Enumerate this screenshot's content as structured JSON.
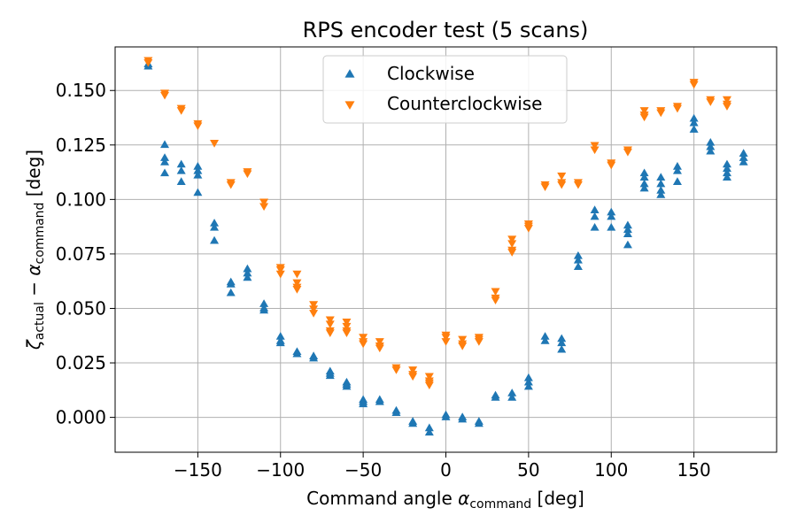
{
  "chart_data": {
    "type": "scatter",
    "title": "RPS encoder test (5 scans)",
    "xlabel": {
      "main": "Command angle ",
      "symbol": "α",
      "sub": "command",
      "unit": " [deg]"
    },
    "ylabel": {
      "sym1": "ζ",
      "sub1": "actual",
      "mid": " − ",
      "sym2": "α",
      "sub2": "command",
      "unit": " [deg]"
    },
    "xlim": [
      -200,
      200
    ],
    "ylim": [
      -0.016,
      0.17
    ],
    "xticks": [
      -150,
      -100,
      -50,
      0,
      50,
      100,
      150
    ],
    "xtick_labels": [
      "−150",
      "−100",
      "−50",
      "0",
      "50",
      "100",
      "150"
    ],
    "yticks": [
      0.0,
      0.025,
      0.05,
      0.075,
      0.1,
      0.125,
      0.15
    ],
    "ytick_labels": [
      "0.000",
      "0.025",
      "0.050",
      "0.075",
      "0.100",
      "0.125",
      "0.150"
    ],
    "grid": true,
    "legend_position": "top-center",
    "series": [
      {
        "name": "Clockwise",
        "color": "#1f77b4",
        "marker": "triangle-up",
        "points": [
          [
            -180,
            0.161
          ],
          [
            -180,
            0.162
          ],
          [
            -170,
            0.125
          ],
          [
            -170,
            0.119
          ],
          [
            -170,
            0.117
          ],
          [
            -170,
            0.112
          ],
          [
            -160,
            0.116
          ],
          [
            -160,
            0.113
          ],
          [
            -160,
            0.108
          ],
          [
            -150,
            0.115
          ],
          [
            -150,
            0.113
          ],
          [
            -150,
            0.111
          ],
          [
            -150,
            0.103
          ],
          [
            -140,
            0.089
          ],
          [
            -140,
            0.087
          ],
          [
            -140,
            0.081
          ],
          [
            -130,
            0.062
          ],
          [
            -130,
            0.061
          ],
          [
            -130,
            0.057
          ],
          [
            -120,
            0.068
          ],
          [
            -120,
            0.066
          ],
          [
            -120,
            0.064
          ],
          [
            -110,
            0.052
          ],
          [
            -110,
            0.05
          ],
          [
            -110,
            0.049
          ],
          [
            -100,
            0.037
          ],
          [
            -100,
            0.035
          ],
          [
            -100,
            0.034
          ],
          [
            -90,
            0.03
          ],
          [
            -90,
            0.029
          ],
          [
            -80,
            0.028
          ],
          [
            -80,
            0.027
          ],
          [
            -70,
            0.021
          ],
          [
            -70,
            0.02
          ],
          [
            -70,
            0.019
          ],
          [
            -60,
            0.016
          ],
          [
            -60,
            0.015
          ],
          [
            -60,
            0.014
          ],
          [
            -50,
            0.008
          ],
          [
            -50,
            0.007
          ],
          [
            -50,
            0.006
          ],
          [
            -40,
            0.008
          ],
          [
            -40,
            0.007
          ],
          [
            -30,
            0.003
          ],
          [
            -30,
            0.002
          ],
          [
            -20,
            -0.002
          ],
          [
            -20,
            -0.003
          ],
          [
            -10,
            -0.005
          ],
          [
            -10,
            -0.007
          ],
          [
            0,
            0.001
          ],
          [
            0,
            0.0
          ],
          [
            10,
            0.0
          ],
          [
            10,
            -0.001
          ],
          [
            20,
            -0.002
          ],
          [
            20,
            -0.003
          ],
          [
            30,
            0.01
          ],
          [
            30,
            0.009
          ],
          [
            40,
            0.011
          ],
          [
            40,
            0.009
          ],
          [
            50,
            0.018
          ],
          [
            50,
            0.016
          ],
          [
            50,
            0.014
          ],
          [
            60,
            0.037
          ],
          [
            60,
            0.035
          ],
          [
            70,
            0.036
          ],
          [
            70,
            0.034
          ],
          [
            70,
            0.031
          ],
          [
            80,
            0.074
          ],
          [
            80,
            0.072
          ],
          [
            80,
            0.069
          ],
          [
            90,
            0.095
          ],
          [
            90,
            0.092
          ],
          [
            90,
            0.087
          ],
          [
            100,
            0.094
          ],
          [
            100,
            0.092
          ],
          [
            100,
            0.087
          ],
          [
            110,
            0.088
          ],
          [
            110,
            0.086
          ],
          [
            110,
            0.084
          ],
          [
            110,
            0.079
          ],
          [
            120,
            0.112
          ],
          [
            120,
            0.11
          ],
          [
            120,
            0.107
          ],
          [
            120,
            0.105
          ],
          [
            130,
            0.11
          ],
          [
            130,
            0.107
          ],
          [
            130,
            0.104
          ],
          [
            130,
            0.102
          ],
          [
            140,
            0.115
          ],
          [
            140,
            0.113
          ],
          [
            140,
            0.108
          ],
          [
            150,
            0.137
          ],
          [
            150,
            0.135
          ],
          [
            150,
            0.132
          ],
          [
            160,
            0.126
          ],
          [
            160,
            0.124
          ],
          [
            160,
            0.122
          ],
          [
            170,
            0.116
          ],
          [
            170,
            0.114
          ],
          [
            170,
            0.112
          ],
          [
            170,
            0.11
          ],
          [
            180,
            0.121
          ],
          [
            180,
            0.119
          ],
          [
            180,
            0.117
          ]
        ]
      },
      {
        "name": "Counterclockwise",
        "color": "#ff7f0e",
        "marker": "triangle-down",
        "points": [
          [
            -180,
            0.164
          ],
          [
            -180,
            0.163
          ],
          [
            -170,
            0.149
          ],
          [
            -170,
            0.148
          ],
          [
            -160,
            0.142
          ],
          [
            -160,
            0.141
          ],
          [
            -150,
            0.135
          ],
          [
            -150,
            0.134
          ],
          [
            -140,
            0.126
          ],
          [
            -130,
            0.108
          ],
          [
            -130,
            0.107
          ],
          [
            -120,
            0.113
          ],
          [
            -120,
            0.112
          ],
          [
            -110,
            0.099
          ],
          [
            -110,
            0.097
          ],
          [
            -100,
            0.069
          ],
          [
            -100,
            0.068
          ],
          [
            -100,
            0.066
          ],
          [
            -90,
            0.066
          ],
          [
            -90,
            0.062
          ],
          [
            -90,
            0.06
          ],
          [
            -90,
            0.059
          ],
          [
            -80,
            0.052
          ],
          [
            -80,
            0.05
          ],
          [
            -80,
            0.048
          ],
          [
            -70,
            0.045
          ],
          [
            -70,
            0.043
          ],
          [
            -70,
            0.04
          ],
          [
            -70,
            0.039
          ],
          [
            -60,
            0.044
          ],
          [
            -60,
            0.042
          ],
          [
            -60,
            0.04
          ],
          [
            -60,
            0.039
          ],
          [
            -50,
            0.037
          ],
          [
            -50,
            0.035
          ],
          [
            -50,
            0.034
          ],
          [
            -40,
            0.035
          ],
          [
            -40,
            0.033
          ],
          [
            -40,
            0.032
          ],
          [
            -30,
            0.023
          ],
          [
            -30,
            0.022
          ],
          [
            -20,
            0.022
          ],
          [
            -20,
            0.02
          ],
          [
            -20,
            0.019
          ],
          [
            -10,
            0.019
          ],
          [
            -10,
            0.017
          ],
          [
            -10,
            0.016
          ],
          [
            -10,
            0.015
          ],
          [
            0,
            0.038
          ],
          [
            0,
            0.037
          ],
          [
            0,
            0.035
          ],
          [
            10,
            0.036
          ],
          [
            10,
            0.034
          ],
          [
            10,
            0.033
          ],
          [
            20,
            0.037
          ],
          [
            20,
            0.036
          ],
          [
            20,
            0.035
          ],
          [
            30,
            0.058
          ],
          [
            30,
            0.055
          ],
          [
            30,
            0.054
          ],
          [
            40,
            0.082
          ],
          [
            40,
            0.08
          ],
          [
            40,
            0.077
          ],
          [
            40,
            0.076
          ],
          [
            50,
            0.089
          ],
          [
            50,
            0.088
          ],
          [
            50,
            0.087
          ],
          [
            60,
            0.107
          ],
          [
            60,
            0.106
          ],
          [
            70,
            0.111
          ],
          [
            70,
            0.108
          ],
          [
            70,
            0.107
          ],
          [
            80,
            0.108
          ],
          [
            80,
            0.107
          ],
          [
            90,
            0.125
          ],
          [
            90,
            0.123
          ],
          [
            100,
            0.117
          ],
          [
            100,
            0.116
          ],
          [
            110,
            0.123
          ],
          [
            110,
            0.122
          ],
          [
            120,
            0.141
          ],
          [
            120,
            0.139
          ],
          [
            120,
            0.138
          ],
          [
            130,
            0.141
          ],
          [
            130,
            0.14
          ],
          [
            140,
            0.143
          ],
          [
            140,
            0.142
          ],
          [
            150,
            0.154
          ],
          [
            150,
            0.153
          ],
          [
            160,
            0.146
          ],
          [
            160,
            0.145
          ],
          [
            170,
            0.146
          ],
          [
            170,
            0.144
          ],
          [
            170,
            0.143
          ]
        ]
      }
    ]
  }
}
